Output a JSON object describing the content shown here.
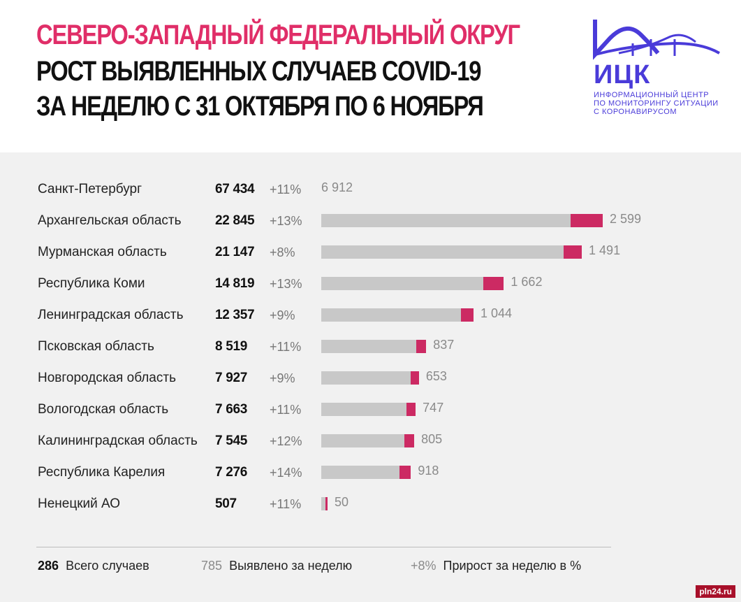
{
  "title": {
    "line1": "СЕВЕРО-ЗАПАДНЫЙ ФЕДЕРАЛЬНЫЙ ОКРУГ",
    "line2": "РОСТ ВЫЯВЛЕННЫХ СЛУЧАЕВ COVID-19",
    "line3": "ЗА НЕДЕЛЮ С 31 ОКТЯБРЯ ПО 6 НОЯБРЯ"
  },
  "logo": {
    "abbr": "ИЦК",
    "line1": "ИНФОРМАЦИОННЫЙ ЦЕНТР",
    "line2": "ПО МОНИТОРИНГУ СИТУАЦИИ",
    "line3": "С КОРОНАВИРУСОМ"
  },
  "colors": {
    "title_accent": "#e02e68",
    "bar_total": "#c8c8c8",
    "bar_weekly": "#cc2a63",
    "logo": "#4a3bd9"
  },
  "chart_data": {
    "type": "bar",
    "orientation": "horizontal",
    "stacked": true,
    "rows": [
      {
        "region": "Санкт-Петербург",
        "total": "67 434",
        "growth": "+11%",
        "weekly": "6 912",
        "total_value": 67434,
        "weekly_value": 6912,
        "bar_shown": false
      },
      {
        "region": "Архангельская область",
        "total": "22 845",
        "growth": "+13%",
        "weekly": "2 599",
        "total_value": 22845,
        "weekly_value": 2599,
        "bar_shown": true
      },
      {
        "region": "Мурманская область",
        "total": "21 147",
        "growth": "+8%",
        "weekly": "1 491",
        "total_value": 21147,
        "weekly_value": 1491,
        "bar_shown": true
      },
      {
        "region": "Республика Коми",
        "total": "14 819",
        "growth": "+13%",
        "weekly": "1 662",
        "total_value": 14819,
        "weekly_value": 1662,
        "bar_shown": true
      },
      {
        "region": "Ленинградская область",
        "total": "12 357",
        "growth": "+9%",
        "weekly": "1 044",
        "total_value": 12357,
        "weekly_value": 1044,
        "bar_shown": true
      },
      {
        "region": "Псковская область",
        "total": "8 519",
        "growth": "+11%",
        "weekly": "837",
        "total_value": 8519,
        "weekly_value": 837,
        "bar_shown": true
      },
      {
        "region": "Новгородская область",
        "total": "7 927",
        "growth": "+9%",
        "weekly": "653",
        "total_value": 7927,
        "weekly_value": 653,
        "bar_shown": true
      },
      {
        "region": "Вологодская область",
        "total": "7 663",
        "growth": "+11%",
        "weekly": "747",
        "total_value": 7663,
        "weekly_value": 747,
        "bar_shown": true
      },
      {
        "region": "Калининградская область",
        "total": "7 545",
        "growth": "+12%",
        "weekly": "805",
        "total_value": 7545,
        "weekly_value": 805,
        "bar_shown": true
      },
      {
        "region": "Республика Карелия",
        "total": "7 276",
        "growth": "+14%",
        "weekly": "918",
        "total_value": 7276,
        "weekly_value": 918,
        "bar_shown": true
      },
      {
        "region": "Ненецкий АО",
        "total": "507",
        "growth": "+11%",
        "weekly": "50",
        "total_value": 507,
        "weekly_value": 50,
        "bar_shown": true
      }
    ]
  },
  "legend": {
    "total_sample": "286",
    "total_label": "Всего случаев",
    "weekly_sample": "785",
    "weekly_label": "Выявлено за неделю",
    "growth_sample": "+8%",
    "growth_label": "Прирост за неделю в %"
  },
  "watermark": "pln24.ru"
}
